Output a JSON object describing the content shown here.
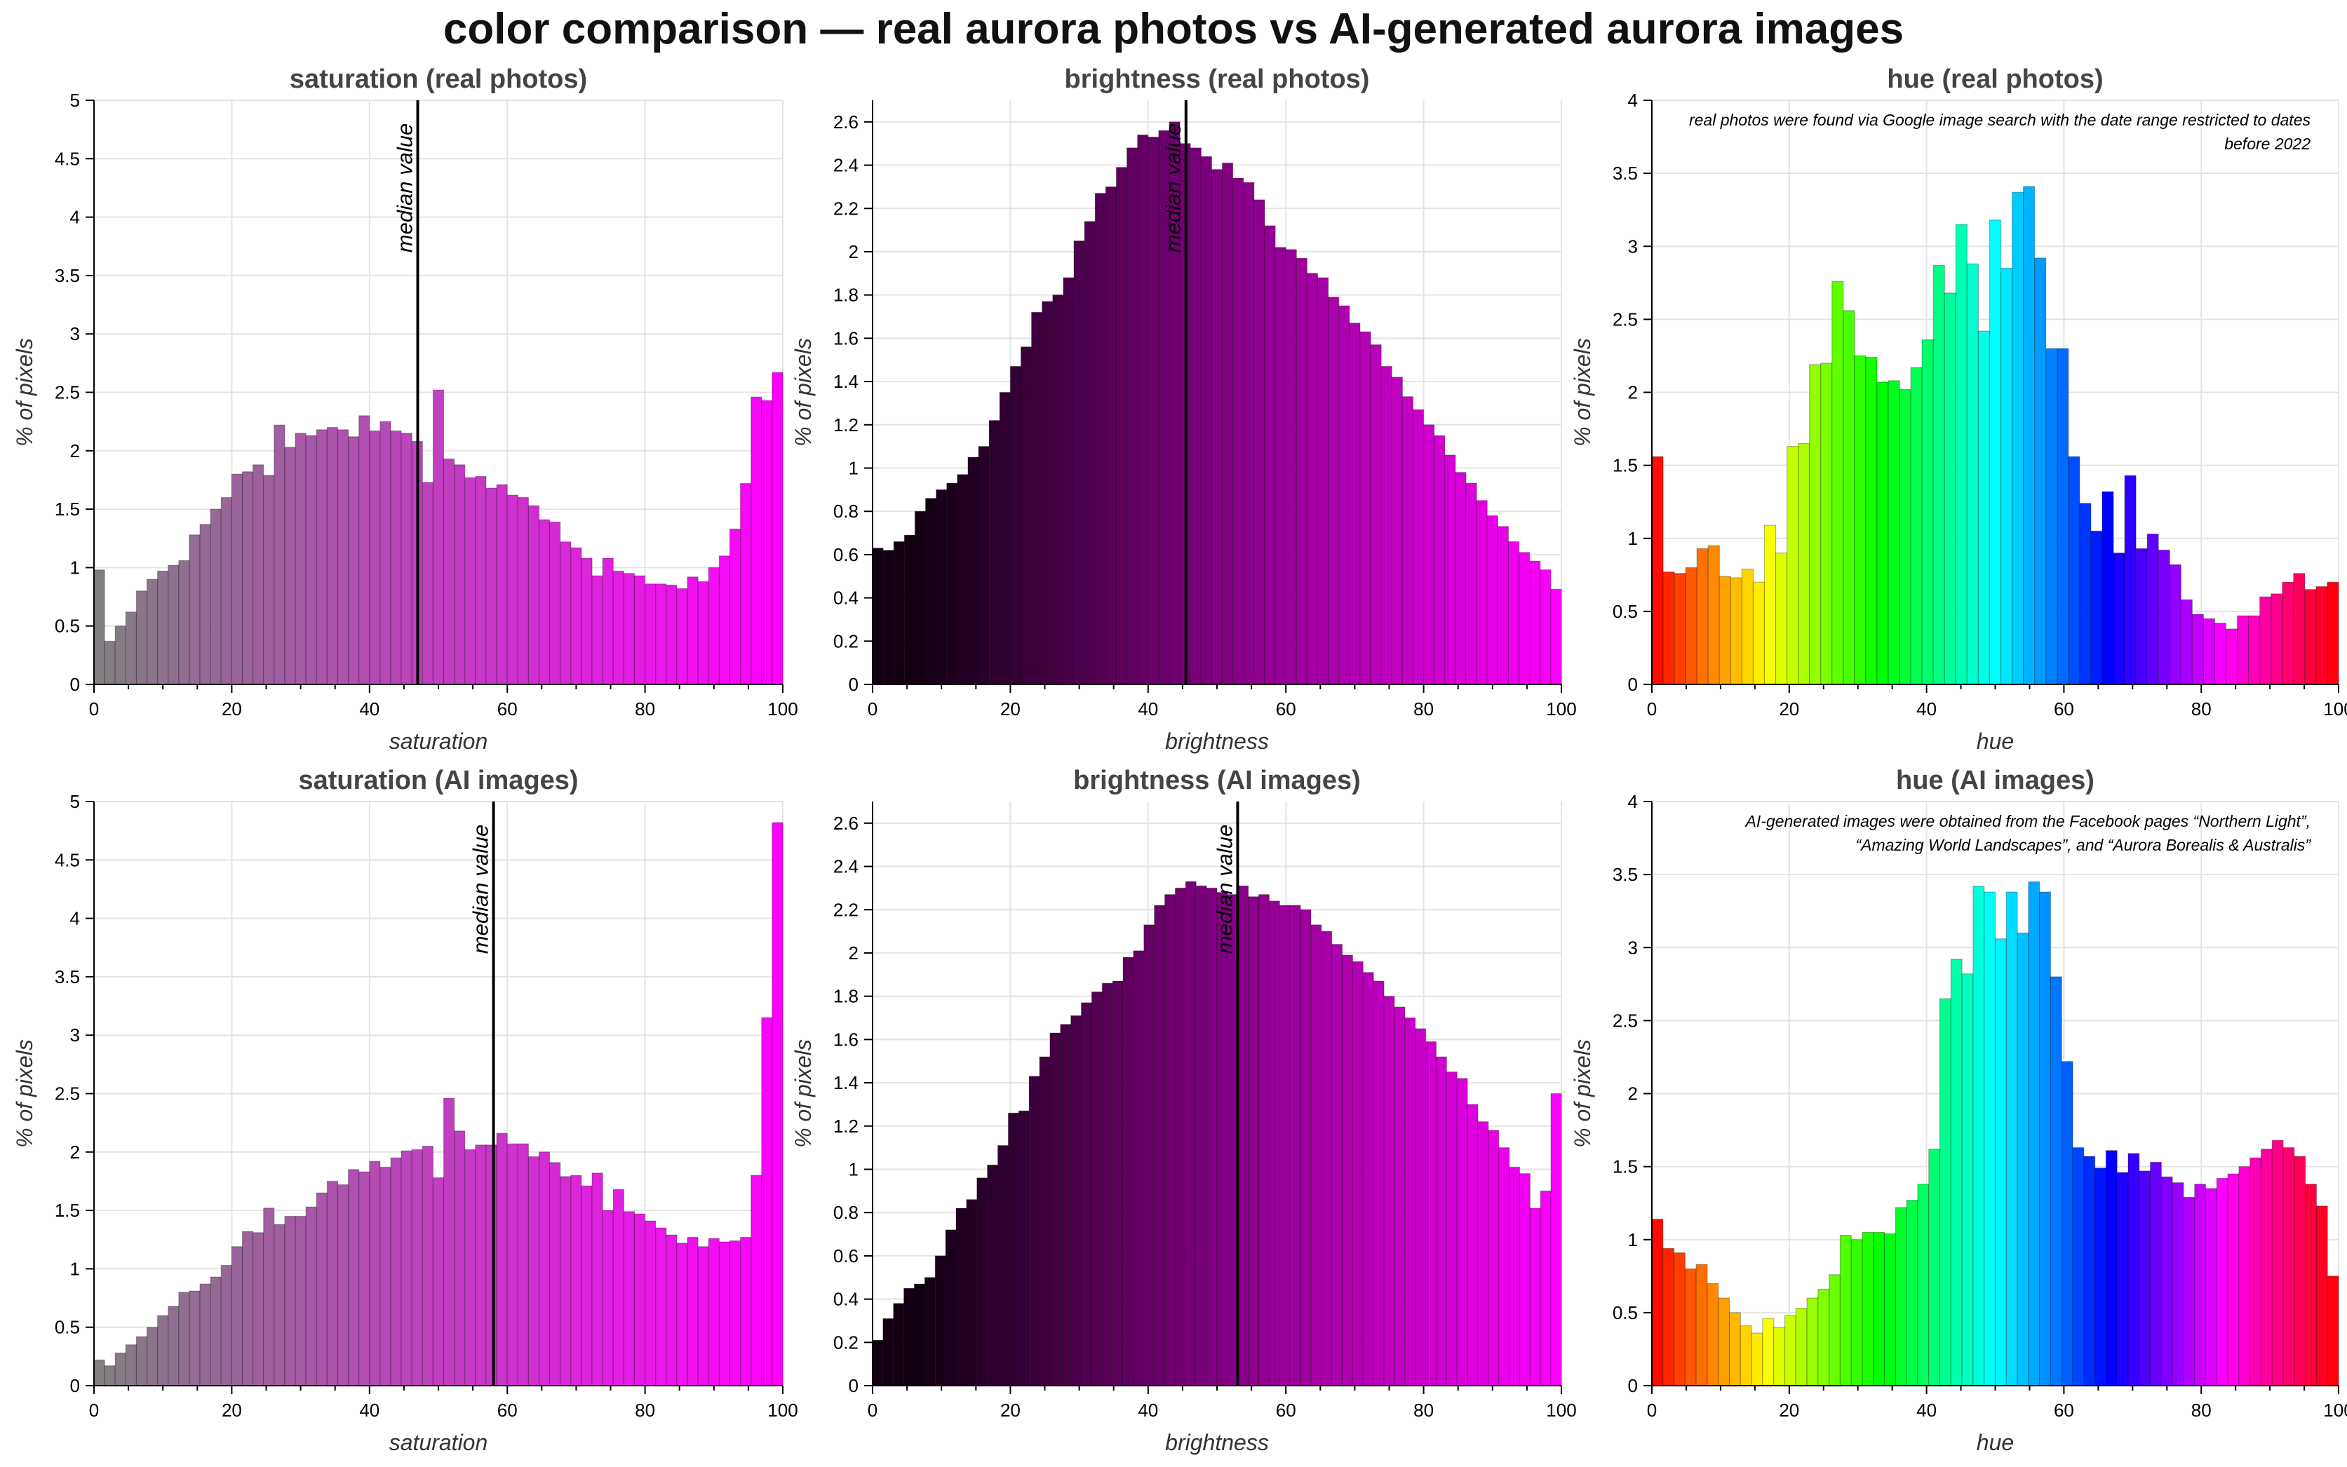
{
  "title": "color comparison — real aurora photos vs AI-generated aurora images",
  "chart_data": [
    {
      "type": "bar",
      "title": "saturation (real photos)",
      "xlabel": "saturation",
      "ylabel": "% of pixels",
      "xlim": [
        0,
        100
      ],
      "ylim": [
        0,
        5
      ],
      "yticks": [
        "0",
        "0.5",
        "1",
        "1.5",
        "2",
        "2.5",
        "3",
        "3.5",
        "4",
        "4.5",
        "5"
      ],
      "xticks": [
        "0",
        "20",
        "40",
        "60",
        "80",
        "100"
      ],
      "color_scale": "saturation",
      "median": 47,
      "median_label": "median value",
      "values": [
        0.98,
        0.37,
        0.5,
        0.62,
        0.8,
        0.9,
        0.97,
        1.02,
        1.06,
        1.28,
        1.37,
        1.5,
        1.6,
        1.8,
        1.82,
        1.88,
        1.79,
        2.22,
        2.03,
        2.15,
        2.13,
        2.18,
        2.2,
        2.18,
        2.12,
        2.3,
        2.17,
        2.25,
        2.17,
        2.15,
        2.08,
        1.73,
        2.52,
        1.93,
        1.88,
        1.77,
        1.78,
        1.68,
        1.71,
        1.62,
        1.6,
        1.53,
        1.41,
        1.39,
        1.22,
        1.17,
        1.08,
        0.93,
        1.08,
        0.97,
        0.95,
        0.93,
        0.86,
        0.86,
        0.85,
        0.82,
        0.92,
        0.88,
        1.0,
        1.1,
        1.33,
        1.72,
        2.46,
        2.43,
        2.67
      ]
    },
    {
      "type": "bar",
      "title": "brightness (real photos)",
      "xlabel": "brightness",
      "ylabel": "% of pixels",
      "xlim": [
        0,
        100
      ],
      "ylim": [
        0,
        2.7
      ],
      "yticks": [
        "0",
        "0.2",
        "0.4",
        "0.6",
        "0.8",
        "1",
        "1.2",
        "1.4",
        "1.6",
        "1.8",
        "2",
        "2.2",
        "2.4",
        "2.6"
      ],
      "xticks": [
        "0",
        "20",
        "40",
        "60",
        "80",
        "100"
      ],
      "color_scale": "brightness",
      "median": 45.5,
      "median_label": "median value",
      "values": [
        0.63,
        0.62,
        0.66,
        0.69,
        0.8,
        0.86,
        0.9,
        0.93,
        0.97,
        1.05,
        1.1,
        1.22,
        1.35,
        1.47,
        1.56,
        1.72,
        1.77,
        1.8,
        1.88,
        2.05,
        2.14,
        2.27,
        2.3,
        2.39,
        2.48,
        2.54,
        2.53,
        2.56,
        2.6,
        2.5,
        2.48,
        2.44,
        2.38,
        2.41,
        2.34,
        2.32,
        2.24,
        2.12,
        2.02,
        2.01,
        1.97,
        1.9,
        1.88,
        1.79,
        1.75,
        1.67,
        1.63,
        1.57,
        1.47,
        1.42,
        1.33,
        1.27,
        1.2,
        1.15,
        1.06,
        0.98,
        0.93,
        0.85,
        0.78,
        0.73,
        0.66,
        0.61,
        0.57,
        0.53,
        0.44
      ]
    },
    {
      "type": "bar",
      "title": "hue (real photos)",
      "xlabel": "hue",
      "ylabel": "% of pixels",
      "xlim": [
        0,
        100
      ],
      "ylim": [
        0,
        4
      ],
      "yticks": [
        "0",
        "0.5",
        "1",
        "1.5",
        "2",
        "2.5",
        "3",
        "3.5",
        "4"
      ],
      "xticks": [
        "0",
        "20",
        "40",
        "60",
        "80",
        "100"
      ],
      "color_scale": "hue",
      "annotation": "real photos were found via Google image search with the date range restricted to dates before 2022",
      "values": [
        1.56,
        0.77,
        0.76,
        0.8,
        0.93,
        0.95,
        0.74,
        0.73,
        0.79,
        0.7,
        1.09,
        0.9,
        1.63,
        1.65,
        2.19,
        2.2,
        2.76,
        2.56,
        2.25,
        2.24,
        2.07,
        2.08,
        2.02,
        2.17,
        2.36,
        2.87,
        2.68,
        3.15,
        2.88,
        2.42,
        3.18,
        2.85,
        3.37,
        3.41,
        2.92,
        2.3,
        2.3,
        1.56,
        1.24,
        1.05,
        1.32,
        0.9,
        1.43,
        0.93,
        1.03,
        0.92,
        0.82,
        0.58,
        0.48,
        0.45,
        0.42,
        0.38,
        0.47,
        0.47,
        0.6,
        0.62,
        0.7,
        0.76,
        0.65,
        0.67,
        0.7
      ]
    },
    {
      "type": "bar",
      "title": "saturation (AI images)",
      "xlabel": "saturation",
      "ylabel": "% of pixels",
      "xlim": [
        0,
        100
      ],
      "ylim": [
        0,
        5
      ],
      "yticks": [
        "0",
        "0.5",
        "1",
        "1.5",
        "2",
        "2.5",
        "3",
        "3.5",
        "4",
        "4.5",
        "5"
      ],
      "xticks": [
        "0",
        "20",
        "40",
        "60",
        "80",
        "100"
      ],
      "color_scale": "saturation",
      "median": 58,
      "median_label": "median value",
      "values": [
        0.22,
        0.17,
        0.28,
        0.35,
        0.42,
        0.5,
        0.6,
        0.68,
        0.8,
        0.81,
        0.87,
        0.93,
        1.03,
        1.19,
        1.32,
        1.31,
        1.52,
        1.38,
        1.45,
        1.45,
        1.53,
        1.65,
        1.75,
        1.72,
        1.85,
        1.83,
        1.92,
        1.87,
        1.95,
        2.01,
        2.02,
        2.05,
        1.78,
        2.46,
        2.18,
        2.02,
        2.06,
        2.06,
        2.16,
        2.07,
        2.07,
        1.96,
        2.0,
        1.91,
        1.79,
        1.8,
        1.71,
        1.82,
        1.5,
        1.68,
        1.49,
        1.47,
        1.41,
        1.35,
        1.29,
        1.22,
        1.27,
        1.19,
        1.26,
        1.23,
        1.24,
        1.27,
        1.8,
        3.15,
        4.82
      ]
    },
    {
      "type": "bar",
      "title": "brightness (AI images)",
      "xlabel": "brightness",
      "ylabel": "% of pixels",
      "xlim": [
        0,
        100
      ],
      "ylim": [
        0,
        2.7
      ],
      "yticks": [
        "0",
        "0.2",
        "0.4",
        "0.6",
        "0.8",
        "1",
        "1.2",
        "1.4",
        "1.6",
        "1.8",
        "2",
        "2.2",
        "2.4",
        "2.6"
      ],
      "xticks": [
        "0",
        "20",
        "40",
        "60",
        "80",
        "100"
      ],
      "color_scale": "brightness",
      "median": 53,
      "median_label": "median value",
      "values": [
        0.21,
        0.31,
        0.38,
        0.45,
        0.47,
        0.5,
        0.6,
        0.72,
        0.82,
        0.86,
        0.96,
        1.02,
        1.11,
        1.26,
        1.27,
        1.43,
        1.52,
        1.63,
        1.67,
        1.71,
        1.77,
        1.82,
        1.86,
        1.87,
        1.98,
        2.01,
        2.13,
        2.22,
        2.27,
        2.3,
        2.33,
        2.31,
        2.3,
        2.28,
        2.27,
        2.31,
        2.26,
        2.27,
        2.24,
        2.22,
        2.22,
        2.2,
        2.13,
        2.1,
        2.04,
        1.99,
        1.96,
        1.91,
        1.87,
        1.8,
        1.75,
        1.7,
        1.65,
        1.59,
        1.52,
        1.45,
        1.42,
        1.3,
        1.22,
        1.18,
        1.1,
        1.01,
        0.98,
        0.82,
        0.9,
        1.35
      ]
    },
    {
      "type": "bar",
      "title": "hue (AI images)",
      "xlabel": "hue",
      "ylabel": "% of pixels",
      "xlim": [
        0,
        100
      ],
      "ylim": [
        0,
        4
      ],
      "yticks": [
        "0",
        "0.5",
        "1",
        "1.5",
        "2",
        "2.5",
        "3",
        "3.5",
        "4"
      ],
      "xticks": [
        "0",
        "20",
        "40",
        "60",
        "80",
        "100"
      ],
      "color_scale": "hue",
      "annotation_lines": [
        "AI-generated images were obtained from the Facebook pages “Northern Light”,",
        "“Amazing World Landscapes”, and “Aurora Borealis & Australis”"
      ],
      "values": [
        1.14,
        0.94,
        0.91,
        0.8,
        0.83,
        0.7,
        0.6,
        0.5,
        0.41,
        0.36,
        0.46,
        0.4,
        0.48,
        0.53,
        0.6,
        0.66,
        0.76,
        1.03,
        1.0,
        1.05,
        1.05,
        1.04,
        1.22,
        1.27,
        1.38,
        1.62,
        2.65,
        2.92,
        2.82,
        3.42,
        3.38,
        3.06,
        3.38,
        3.1,
        3.45,
        3.38,
        2.8,
        2.22,
        1.63,
        1.57,
        1.49,
        1.61,
        1.46,
        1.59,
        1.47,
        1.53,
        1.43,
        1.39,
        1.29,
        1.38,
        1.35,
        1.42,
        1.45,
        1.5,
        1.56,
        1.62,
        1.68,
        1.63,
        1.57,
        1.38,
        1.23,
        0.75
      ]
    }
  ]
}
